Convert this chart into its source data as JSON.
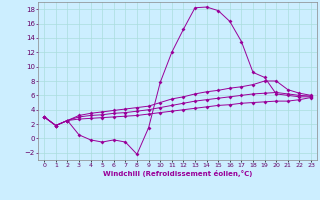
{
  "xlabel": "Windchill (Refroidissement éolien,°C)",
  "background_color": "#cceeff",
  "grid_color": "#aadddd",
  "line_color": "#990099",
  "x_hours": [
    0,
    1,
    2,
    3,
    4,
    5,
    6,
    7,
    8,
    9,
    10,
    11,
    12,
    13,
    14,
    15,
    16,
    17,
    18,
    19,
    20,
    21,
    22,
    23
  ],
  "line1_y": [
    3.0,
    1.8,
    2.5,
    0.5,
    -0.2,
    -0.5,
    -0.2,
    -0.5,
    -2.2,
    1.5,
    7.8,
    12.0,
    15.2,
    18.2,
    18.3,
    17.8,
    16.3,
    13.5,
    9.2,
    8.5,
    6.2,
    6.0,
    5.8,
    5.8
  ],
  "line2_y": [
    3.0,
    1.8,
    2.5,
    3.2,
    3.5,
    3.7,
    3.9,
    4.1,
    4.3,
    4.5,
    5.0,
    5.5,
    5.8,
    6.2,
    6.5,
    6.7,
    7.0,
    7.2,
    7.5,
    8.0,
    8.0,
    6.8,
    6.3,
    6.0
  ],
  "line3_y": [
    3.0,
    1.8,
    2.5,
    3.0,
    3.2,
    3.3,
    3.5,
    3.6,
    3.8,
    4.0,
    4.3,
    4.6,
    4.9,
    5.2,
    5.4,
    5.6,
    5.8,
    6.0,
    6.2,
    6.3,
    6.4,
    6.2,
    6.0,
    5.9
  ],
  "line4_y": [
    3.0,
    1.8,
    2.5,
    2.7,
    2.8,
    2.9,
    3.0,
    3.1,
    3.2,
    3.4,
    3.6,
    3.8,
    4.0,
    4.2,
    4.4,
    4.6,
    4.7,
    4.9,
    5.0,
    5.1,
    5.2,
    5.2,
    5.4,
    5.7
  ],
  "ylim": [
    -3,
    19
  ],
  "yticks": [
    -2,
    0,
    2,
    4,
    6,
    8,
    10,
    12,
    14,
    16,
    18
  ],
  "xtick_labels": [
    "0",
    "1",
    "2",
    "3",
    "4",
    "5",
    "6",
    "7",
    "8",
    "9",
    "10",
    "11",
    "12",
    "13",
    "14",
    "15",
    "16",
    "17",
    "18",
    "19",
    "20",
    "21",
    "22",
    "23"
  ]
}
